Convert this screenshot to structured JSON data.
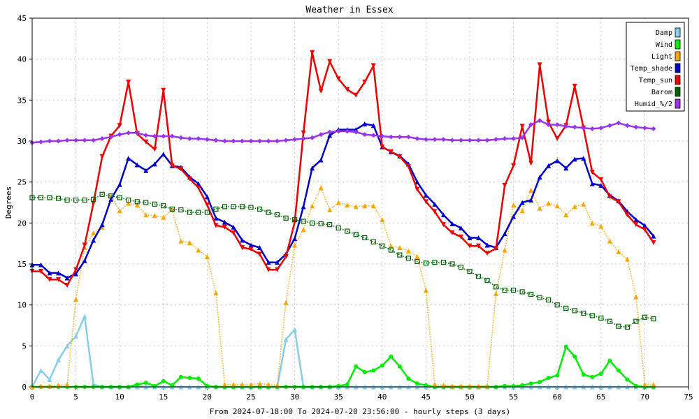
{
  "chart_data": {
    "type": "line",
    "title": "Weather in Essex",
    "xlabel": "From 2024-07-18:00 To 2024-07-20 23:56:00 - hourly steps (3 days)",
    "ylabel": "Degrees",
    "xlim": [
      0,
      75
    ],
    "ylim": [
      0,
      45
    ],
    "xticks": [
      0,
      5,
      10,
      15,
      20,
      25,
      30,
      35,
      40,
      45,
      50,
      55,
      60,
      65,
      70,
      75
    ],
    "yticks": [
      0,
      5,
      10,
      15,
      20,
      25,
      30,
      35,
      40,
      45
    ],
    "grid": true,
    "legend_position": "top-right",
    "x": [
      0,
      1,
      2,
      3,
      4,
      5,
      6,
      7,
      8,
      9,
      10,
      11,
      12,
      13,
      14,
      15,
      16,
      17,
      18,
      19,
      20,
      21,
      22,
      23,
      24,
      25,
      26,
      27,
      28,
      29,
      30,
      31,
      32,
      33,
      34,
      35,
      36,
      37,
      38,
      39,
      40,
      41,
      42,
      43,
      44,
      45,
      46,
      47,
      48,
      49,
      50,
      51,
      52,
      53,
      54,
      55,
      56,
      57,
      58,
      59,
      60,
      61,
      62,
      63,
      64,
      65,
      66,
      67,
      68,
      69,
      70,
      71
    ],
    "series": [
      {
        "name": "Damp",
        "color": "#87ceeb",
        "marker": "triangle",
        "style": "solid",
        "values": [
          0,
          2,
          0.9,
          3.3,
          5,
          6.2,
          8.6,
          0.3,
          0,
          0,
          0,
          0,
          0,
          0,
          0,
          0,
          0,
          0,
          0,
          0,
          0,
          0,
          0,
          0,
          0,
          0,
          0,
          0,
          0,
          5.8,
          7,
          0,
          0,
          0,
          0,
          0,
          0,
          0,
          0,
          0,
          0,
          0,
          0,
          0,
          0,
          0,
          0,
          0,
          0,
          0,
          0,
          0,
          0,
          0,
          0,
          0,
          0,
          0,
          0,
          0,
          0,
          0,
          0,
          0,
          0,
          0,
          0,
          0,
          0,
          0,
          0,
          0
        ]
      },
      {
        "name": "Wind",
        "color": "#00ee00",
        "marker": "circle",
        "style": "solid",
        "values": [
          0,
          0,
          0,
          0,
          0,
          0,
          0,
          0,
          0,
          0,
          0,
          0,
          0.3,
          0.5,
          0.1,
          0.7,
          0.2,
          1.2,
          1.1,
          1,
          0.1,
          0,
          0,
          0,
          0,
          0,
          0,
          0,
          0,
          0,
          0,
          0,
          0,
          0,
          0,
          0.1,
          0.3,
          2.5,
          1.8,
          2,
          2.6,
          3.7,
          2.5,
          1,
          0.4,
          0.2,
          0,
          0,
          0,
          0,
          0,
          0,
          0,
          0,
          0.1,
          0.1,
          0.2,
          0.4,
          0.6,
          1.1,
          1.4,
          4.9,
          3.7,
          1.5,
          1.2,
          1.6,
          3.2,
          2,
          0.9,
          0.1,
          0,
          0
        ]
      },
      {
        "name": "Light",
        "color": "#ffa500",
        "marker": "triangle",
        "style": "dotted",
        "values": [
          0,
          0.1,
          0.1,
          0.2,
          0.3,
          10.7,
          17,
          18.8,
          19.5,
          23.3,
          21.5,
          22.4,
          22.2,
          21,
          20.9,
          20.7,
          21.6,
          17.8,
          17.6,
          16.7,
          15.9,
          11.5,
          0.3,
          0.3,
          0.3,
          0.3,
          0.4,
          0.3,
          0.2,
          10.3,
          17.3,
          19.2,
          22.1,
          24.3,
          21.6,
          22.5,
          22.2,
          22,
          22.1,
          22.1,
          20.4,
          17.2,
          17,
          16.6,
          15.9,
          11.8,
          0.3,
          0.2,
          0.1,
          0.1,
          0.1,
          0.1,
          0.1,
          11.4,
          16.7,
          22.2,
          21.5,
          24,
          21.8,
          22.4,
          22.1,
          21,
          22,
          22.3,
          20,
          19.6,
          17.8,
          16.5,
          15.6,
          11,
          0.3,
          0.3
        ]
      },
      {
        "name": "Temp_shade",
        "color": "#0000cc",
        "marker": "triangle",
        "style": "solid",
        "values": [
          14.9,
          14.9,
          13.9,
          13.9,
          13.3,
          13.8,
          15.4,
          17.9,
          19.8,
          22.9,
          24.7,
          27.9,
          27.1,
          26.4,
          27.2,
          28.4,
          27,
          26.8,
          25.6,
          24.8,
          23.2,
          20.6,
          20.1,
          19.5,
          17.9,
          17.3,
          17,
          15.2,
          15.2,
          16.2,
          18.1,
          22,
          26.7,
          27.7,
          30.7,
          31.4,
          31.4,
          31.4,
          32.1,
          31.9,
          29.3,
          28.7,
          28.2,
          27.2,
          25,
          23.4,
          22.3,
          21,
          19.9,
          19.4,
          18.2,
          18.2,
          17.3,
          17,
          18.7,
          20.8,
          22.5,
          22.8,
          25.6,
          27,
          27.6,
          26.7,
          27.8,
          27.9,
          24.8,
          24.6,
          23.4,
          22.7,
          21.4,
          20.4,
          19.7,
          18.4
        ]
      },
      {
        "name": "Temp_sun",
        "color": "#ee0000",
        "marker": "triangle-down",
        "style": "solid",
        "values": [
          14.1,
          14.1,
          13.1,
          13.1,
          12.4,
          14.3,
          17.3,
          22.4,
          28.1,
          30.6,
          31.9,
          37.2,
          30.9,
          29.9,
          29,
          36.2,
          27,
          26.6,
          25.4,
          24.3,
          22.2,
          19.7,
          19.5,
          18.8,
          17,
          16.8,
          16.2,
          14.3,
          14.3,
          15.9,
          20.1,
          31,
          40.8,
          36.1,
          39.7,
          37.6,
          36.3,
          35.6,
          37.2,
          39.2,
          29.3,
          28.7,
          28.1,
          26.9,
          24.1,
          22.6,
          21.4,
          19.8,
          18.8,
          18.3,
          17.2,
          17.2,
          16.3,
          16.9,
          24.6,
          27,
          31.8,
          27.3,
          39.3,
          32.3,
          30.3,
          31.9,
          36.7,
          31.6,
          26.2,
          25.3,
          23.2,
          22.6,
          21,
          19.8,
          19.2,
          17.6
        ]
      },
      {
        "name": "Barom",
        "color": "#006400",
        "marker": "square",
        "style": "dotted",
        "values": [
          23.1,
          23.1,
          23.1,
          23,
          22.8,
          22.8,
          22.8,
          22.9,
          23.5,
          23.3,
          23.1,
          22.8,
          22.6,
          22.5,
          22.3,
          22.1,
          21.7,
          21.6,
          21.3,
          21.3,
          21.3,
          21.7,
          22,
          22,
          22,
          21.9,
          21.7,
          21.3,
          21,
          20.6,
          20.4,
          20.2,
          20,
          19.9,
          19.8,
          19.4,
          19,
          18.6,
          18.2,
          17.7,
          17.2,
          16.7,
          16.1,
          15.7,
          15.3,
          15.1,
          15.2,
          15.2,
          15,
          14.6,
          14.1,
          13.5,
          13,
          12.2,
          11.8,
          11.8,
          11.6,
          11.3,
          10.9,
          10.6,
          10,
          9.6,
          9.3,
          9,
          8.7,
          8.4,
          8,
          7.4,
          7.3,
          8,
          8.5,
          8.3
        ]
      },
      {
        "name": "Humid_%/2",
        "color": "#9933ee",
        "marker": "diamond",
        "style": "solid",
        "values": [
          29.8,
          29.9,
          30,
          30,
          30.1,
          30.1,
          30.1,
          30.1,
          30.3,
          30.5,
          30.8,
          31,
          31,
          30.7,
          30.6,
          30.6,
          30.6,
          30.4,
          30.3,
          30.3,
          30.2,
          30.1,
          30,
          30,
          30,
          30,
          30,
          30,
          30,
          30.1,
          30.2,
          30.3,
          30.4,
          30.8,
          31.1,
          31.2,
          31.2,
          31.1,
          30.8,
          30.7,
          30.6,
          30.5,
          30.5,
          30.5,
          30.3,
          30.2,
          30.2,
          30.2,
          30.1,
          30.1,
          30.1,
          30.1,
          30.1,
          30.2,
          30.3,
          30.3,
          30.4,
          32,
          32.5,
          32,
          32,
          31.8,
          31.7,
          31.6,
          31.5,
          31.6,
          31.9,
          32.2,
          31.9,
          31.7,
          31.6,
          31.5
        ]
      }
    ]
  }
}
